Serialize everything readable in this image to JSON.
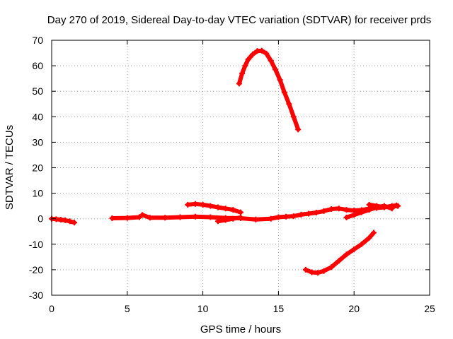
{
  "chart_data": {
    "type": "scatter",
    "title": "Day 270 of 2019, Sidereal Day-to-day VTEC variation (SDTVAR) for receiver prds",
    "xlabel": "GPS time / hours",
    "ylabel": "SDTVAR / TECUs",
    "xlim": [
      0,
      25
    ],
    "ylim": [
      -30,
      70
    ],
    "xticks": [
      0,
      5,
      10,
      15,
      20,
      25
    ],
    "yticks": [
      -30,
      -20,
      -10,
      0,
      10,
      20,
      30,
      40,
      50,
      60,
      70
    ],
    "grid": true,
    "legend": "none",
    "series": [
      {
        "color": "#ff0000",
        "segments": [
          [
            [
              0.0,
              0.0
            ],
            [
              0.3,
              -0.2
            ],
            [
              0.6,
              -0.4
            ],
            [
              0.9,
              -0.6
            ],
            [
              1.2,
              -1.0
            ],
            [
              1.5,
              -1.5
            ]
          ],
          [
            [
              4.0,
              0.2
            ],
            [
              5.0,
              0.3
            ],
            [
              5.8,
              0.6
            ],
            [
              6.0,
              1.5
            ],
            [
              6.5,
              0.4
            ],
            [
              7.5,
              0.4
            ],
            [
              8.5,
              0.6
            ],
            [
              9.5,
              0.8
            ],
            [
              10.5,
              0.6
            ],
            [
              11.5,
              0.3
            ],
            [
              12.5,
              0.2
            ],
            [
              13.5,
              -0.3
            ],
            [
              14.5,
              0.0
            ],
            [
              15.0,
              0.6
            ],
            [
              15.5,
              0.8
            ],
            [
              16.0,
              1.0
            ],
            [
              16.5,
              1.6
            ],
            [
              17.0,
              2.0
            ],
            [
              17.5,
              2.4
            ],
            [
              18.0,
              3.0
            ],
            [
              18.5,
              3.8
            ],
            [
              19.0,
              4.0
            ],
            [
              19.5,
              3.5
            ],
            [
              20.0,
              3.2
            ],
            [
              20.5,
              3.4
            ],
            [
              21.0,
              4.0
            ],
            [
              21.5,
              4.2
            ],
            [
              22.0,
              4.5
            ],
            [
              22.5,
              4.8
            ],
            [
              22.9,
              5.0
            ]
          ],
          [
            [
              11.0,
              -1.0
            ],
            [
              11.5,
              -0.5
            ],
            [
              12.0,
              0.0
            ],
            [
              12.5,
              0.5
            ]
          ],
          [
            [
              9.0,
              5.5
            ],
            [
              9.5,
              5.8
            ],
            [
              10.0,
              5.5
            ],
            [
              10.5,
              5.0
            ],
            [
              11.0,
              4.5
            ],
            [
              11.5,
              4.0
            ],
            [
              12.0,
              3.5
            ],
            [
              12.5,
              2.5
            ]
          ],
          [
            [
              19.5,
              0.5
            ],
            [
              20.0,
              1.5
            ],
            [
              20.5,
              2.5
            ],
            [
              21.0,
              3.5
            ],
            [
              21.5,
              4.5
            ],
            [
              22.0,
              5.0
            ],
            [
              22.5,
              4.0
            ]
          ],
          [
            [
              21.0,
              5.5
            ],
            [
              21.5,
              5.0
            ],
            [
              22.0,
              4.5
            ],
            [
              22.5,
              5.0
            ],
            [
              22.8,
              5.2
            ]
          ],
          [
            [
              12.4,
              53.0
            ],
            [
              12.6,
              57.0
            ],
            [
              12.8,
              60.0
            ],
            [
              13.0,
              62.5
            ],
            [
              13.3,
              64.5
            ],
            [
              13.6,
              65.8
            ],
            [
              13.9,
              65.9
            ],
            [
              14.2,
              64.8
            ],
            [
              14.5,
              62.0
            ],
            [
              14.8,
              58.5
            ],
            [
              15.1,
              54.5
            ],
            [
              15.4,
              49.5
            ],
            [
              15.7,
              45.0
            ],
            [
              16.0,
              40.0
            ],
            [
              16.3,
              35.0
            ]
          ],
          [
            [
              16.8,
              -20.0
            ],
            [
              17.2,
              -21.0
            ],
            [
              17.6,
              -21.2
            ],
            [
              18.0,
              -20.5
            ],
            [
              18.5,
              -19.0
            ],
            [
              19.0,
              -16.5
            ],
            [
              19.5,
              -14.0
            ],
            [
              20.0,
              -12.0
            ],
            [
              20.5,
              -10.0
            ],
            [
              21.0,
              -7.5
            ],
            [
              21.3,
              -5.5
            ]
          ]
        ]
      }
    ]
  }
}
